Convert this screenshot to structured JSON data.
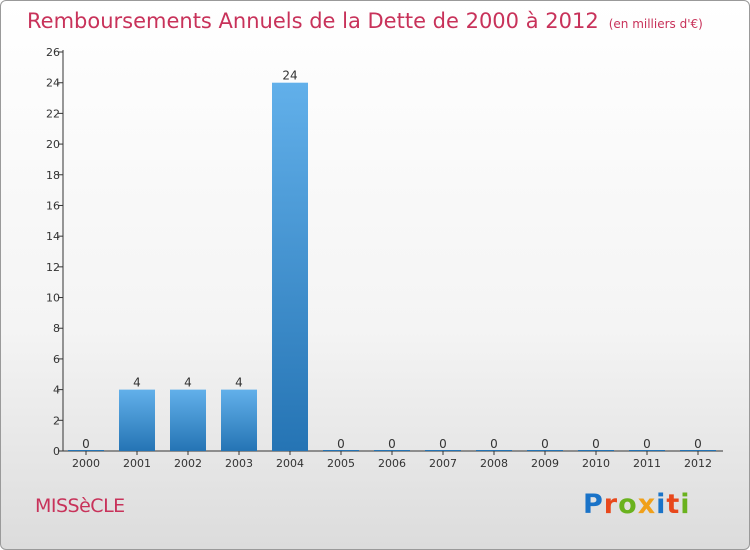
{
  "title": "Remboursements Annuels de la Dette de 2000 à 2012",
  "unit_label": "(en milliers d'€)",
  "commune": "MISSèCLE",
  "brand": {
    "text": "Proxiti",
    "letter_colors": [
      "#1a73c8",
      "#e8481c",
      "#6ab21e",
      "#f0a01a",
      "#1a73c8",
      "#e8481c",
      "#6ab21e"
    ]
  },
  "colors": {
    "title": "#c8325a",
    "bar_light": "#62b0ea",
    "bar_dark": "#2574b4",
    "axis": "#333333"
  },
  "chart_data": {
    "type": "bar",
    "title": "Remboursements Annuels de la Dette de 2000 à 2012",
    "unit": "(en milliers d'€)",
    "categories": [
      "2000",
      "2001",
      "2002",
      "2003",
      "2004",
      "2005",
      "2006",
      "2007",
      "2008",
      "2009",
      "2010",
      "2011",
      "2012"
    ],
    "values": [
      0,
      4,
      4,
      4,
      24,
      0,
      0,
      0,
      0,
      0,
      0,
      0,
      0
    ],
    "data_labels": [
      "0",
      "4",
      "4",
      "4",
      "24",
      "0",
      "0",
      "0",
      "0",
      "0",
      "0",
      "0",
      "0"
    ],
    "ylim": [
      0,
      26
    ],
    "yticks": [
      0,
      2,
      4,
      6,
      8,
      10,
      12,
      14,
      16,
      18,
      20,
      22,
      24,
      26
    ],
    "xlabel": "",
    "ylabel": "",
    "grid": false,
    "legend": "none"
  }
}
